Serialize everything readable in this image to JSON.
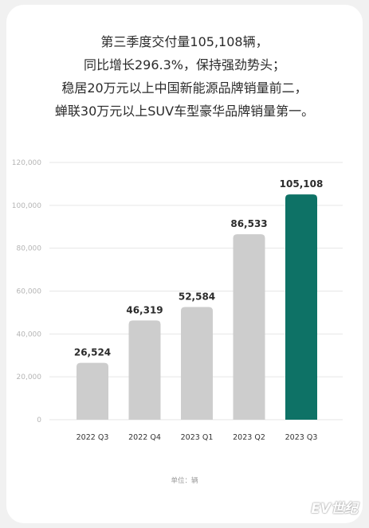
{
  "headline": [
    "第三季度交付量105,108辆，",
    "同比增长296.3%，保持强劲势头；",
    "稳居20万元以上中国新能源品牌销量前二，",
    "蝉联30万元以上SUV车型豪华品牌销量第一。"
  ],
  "unit_label": "单位：辆",
  "watermark": "EV世纪",
  "colors": {
    "bar_default": "#cdcdcd",
    "bar_highlight": "#0e7266",
    "highlight_label": "#1b7a6d",
    "grid": "#e6e6e6"
  },
  "chart_data": {
    "type": "bar",
    "categories": [
      "2022 Q3",
      "2022 Q4",
      "2023 Q1",
      "2023 Q2",
      "2023 Q3"
    ],
    "values": [
      26524,
      46319,
      52584,
      86533,
      105108
    ],
    "value_labels": [
      "26,524",
      "46,319",
      "52,584",
      "86,533",
      "105,108"
    ],
    "highlight_index": 4,
    "ylim": [
      0,
      120000
    ],
    "yticks": [
      0,
      20000,
      40000,
      60000,
      80000,
      100000,
      120000
    ],
    "ytick_labels": [
      "0",
      "20,000",
      "40,000",
      "60,000",
      "80,000",
      "100,000",
      "120,000"
    ],
    "grid": true,
    "title": "",
    "xlabel": "",
    "ylabel": ""
  }
}
